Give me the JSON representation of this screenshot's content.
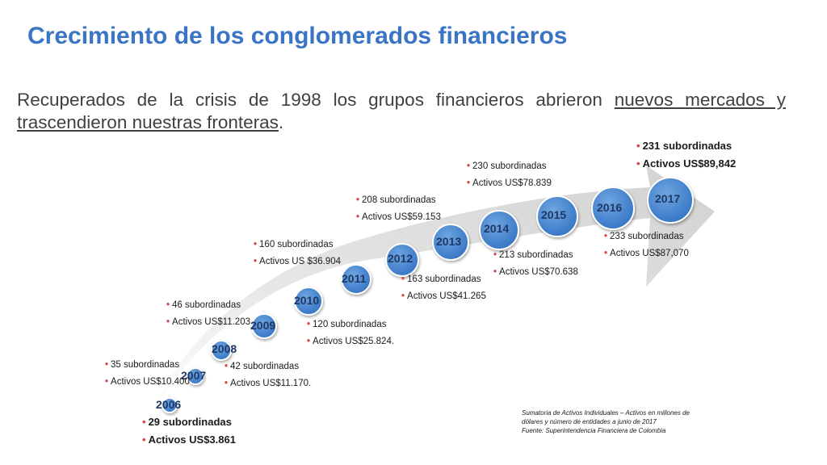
{
  "title": "Crecimiento de los conglomerados financieros",
  "intro": {
    "text_plain": "Recuperados de la crisis de 1998 los grupos financieros abrieron ",
    "text_underlined_1": "nuevos mercados y",
    "text_underlined_2": "trascendieron nuestras fronteras",
    "text_end": "."
  },
  "colors": {
    "title": "#3a74c4",
    "node": "#3d7bc9",
    "arrow": "#d9d9d9",
    "bullet": "#d6454a",
    "year_text": "#1f3864"
  },
  "timeline": [
    {
      "year": "2006",
      "subordinadas": "29 subordinadas",
      "activos": "Activos US$3.861"
    },
    {
      "year": "2007",
      "subordinadas": "35 subordinadas",
      "activos": "Activos US$10.400"
    },
    {
      "year": "2008",
      "subordinadas": "42 subordinadas",
      "activos": "Activos US$11.170."
    },
    {
      "year": "2009",
      "subordinadas": "46 subordinadas",
      "activos": "Activos US$11.203"
    },
    {
      "year": "2010",
      "subordinadas": "120 subordinadas",
      "activos": "Activos US$25.824."
    },
    {
      "year": "2011",
      "subordinadas": "160 subordinadas",
      "activos": "Activos US $36.904"
    },
    {
      "year": "2012",
      "subordinadas": "163 subordinadas",
      "activos": "Activos US$41.265"
    },
    {
      "year": "2013",
      "subordinadas": "208 subordinadas",
      "activos": "Activos US$59.153"
    },
    {
      "year": "2014",
      "subordinadas": "213 subordinadas",
      "activos": "Activos US$70.638"
    },
    {
      "year": "2015",
      "subordinadas": "230 subordinadas",
      "activos": "Activos US$78.839"
    },
    {
      "year": "2016",
      "subordinadas": "233 subordinadas",
      "activos": "Activos US$87,070"
    },
    {
      "year": "2017",
      "subordinadas": "231 subordinadas",
      "activos": "Activos US$89,842"
    }
  ],
  "note": {
    "line1": "Sumatoria de Activos Individuales – Activos en millones de",
    "line2": "dólares y número de entidades a junio de 2017",
    "line3": "Fuente: Superintendencia Financiera de Colombia"
  }
}
